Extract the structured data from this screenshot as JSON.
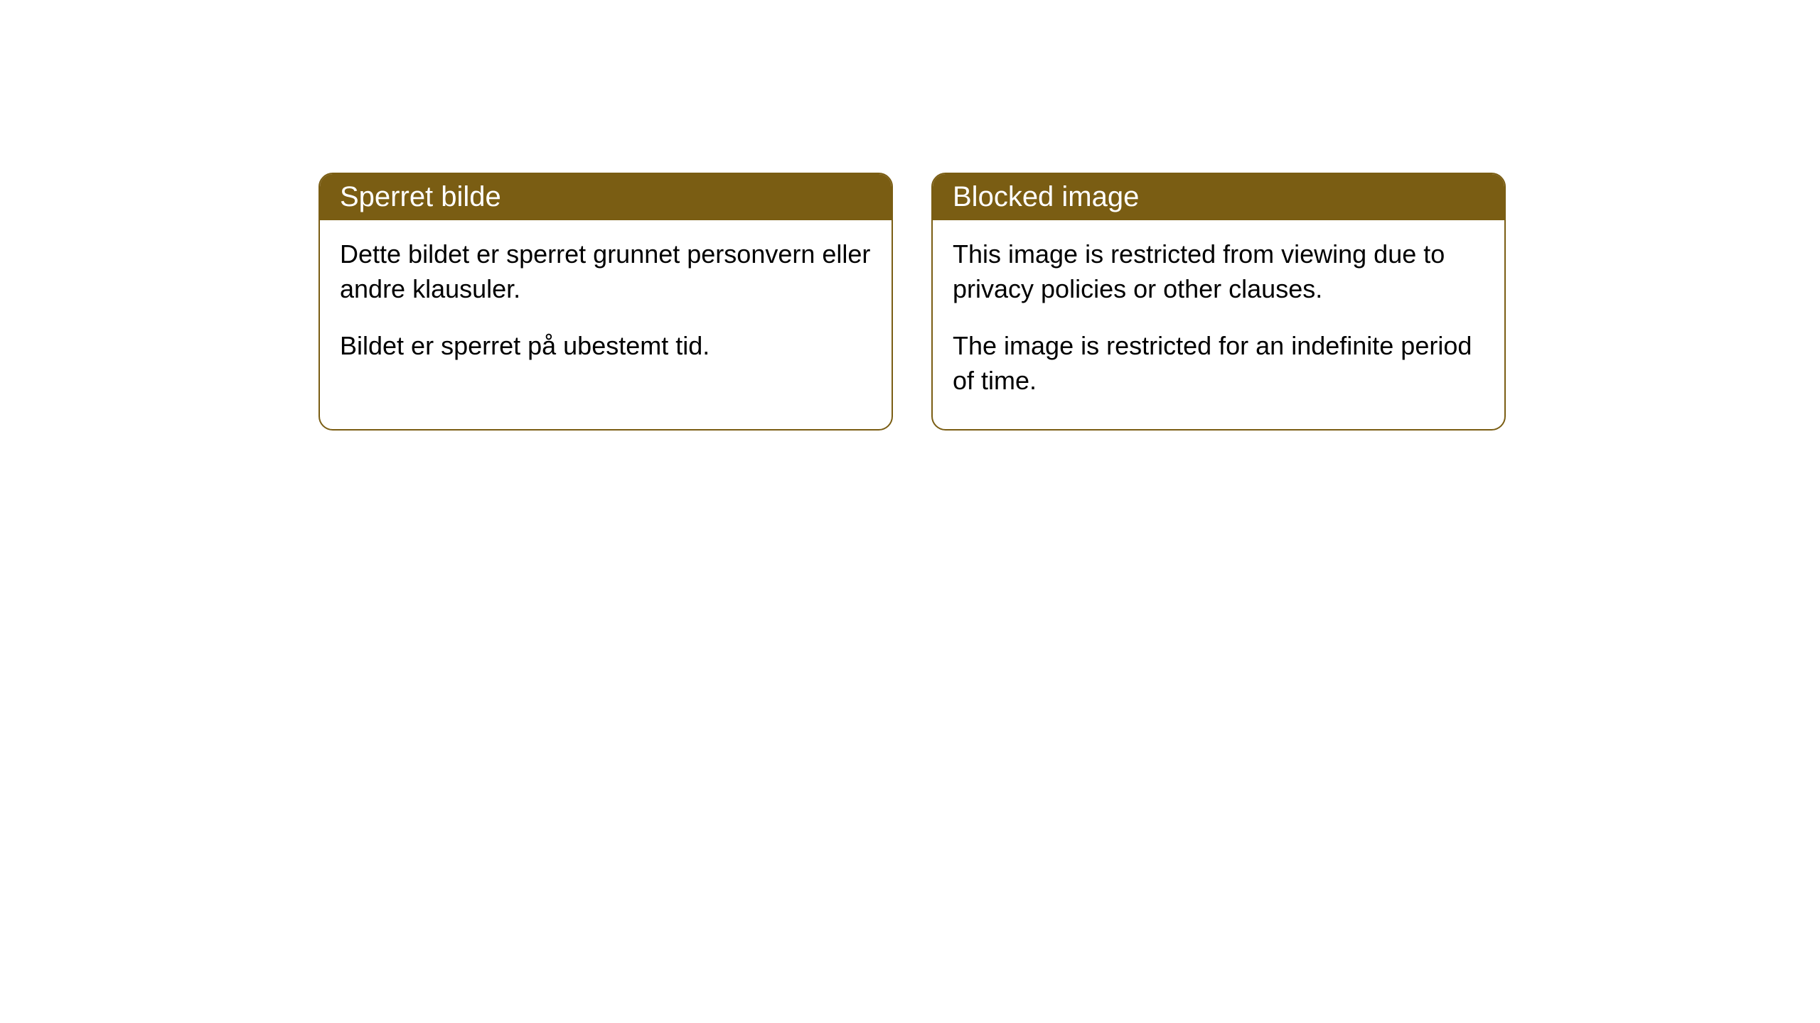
{
  "cards": [
    {
      "title": "Sperret bilde",
      "paragraph1": "Dette bildet er sperret grunnet personvern eller andre klausuler.",
      "paragraph2": "Bildet er sperret på ubestemt tid."
    },
    {
      "title": "Blocked image",
      "paragraph1": "This image is restricted from viewing due to privacy policies or other clauses.",
      "paragraph2": "The image is restricted for an indefinite period of time."
    }
  ],
  "styling": {
    "header_background": "#7a5d13",
    "header_text_color": "#ffffff",
    "border_color": "#7a5d13",
    "body_background": "#ffffff",
    "body_text_color": "#000000",
    "border_radius": 20,
    "header_fontsize": 40,
    "body_fontsize": 36
  }
}
